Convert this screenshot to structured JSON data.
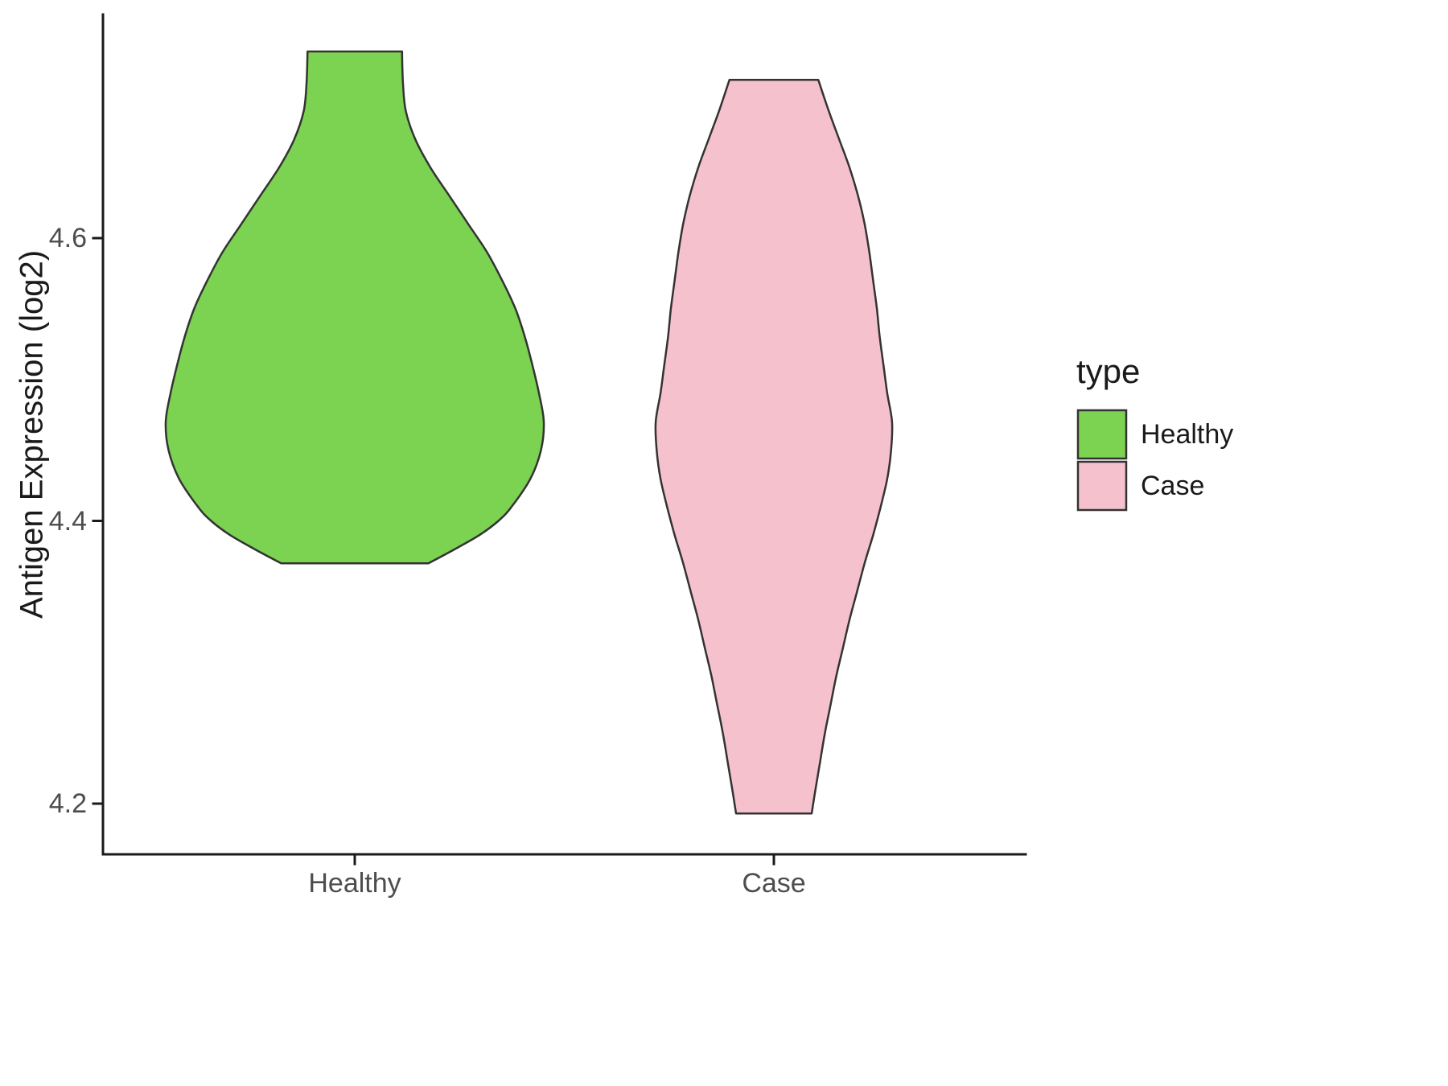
{
  "figure": {
    "background": "#FFFFFF"
  },
  "chart_data": {
    "type": "violin",
    "title": "",
    "xlabel": "",
    "ylabel": "Antigen Expression (log2)",
    "categories": [
      "Healthy",
      "Case"
    ],
    "yticks": [
      4.6,
      4.4,
      4.2
    ],
    "ytick_labels": [
      "4.6",
      "4.4",
      "4.2"
    ],
    "ylim": [
      4.16,
      4.76
    ],
    "grid": false,
    "style": {
      "axis_color": "#1a1a1a",
      "tick_label_color": "#4d4d4d",
      "outline_color": "#333333"
    },
    "legend": {
      "title": "type",
      "position": "right",
      "entries": [
        {
          "label": "Healthy",
          "color": "#7CD251",
          "border": "#333333"
        },
        {
          "label": "Case",
          "color": "#F5C1CD",
          "border": "#333333"
        }
      ]
    },
    "series": [
      {
        "name": "Healthy",
        "fill": "#7CD251",
        "stroke": "#333333",
        "y_min": 4.37,
        "y_max": 4.73,
        "profile": [
          [
            4.732,
            0.25
          ],
          [
            4.71,
            0.255
          ],
          [
            4.69,
            0.27
          ],
          [
            4.67,
            0.32
          ],
          [
            4.65,
            0.4
          ],
          [
            4.63,
            0.5
          ],
          [
            4.61,
            0.6
          ],
          [
            4.59,
            0.7
          ],
          [
            4.57,
            0.78
          ],
          [
            4.55,
            0.85
          ],
          [
            4.53,
            0.9
          ],
          [
            4.51,
            0.94
          ],
          [
            4.49,
            0.975
          ],
          [
            4.47,
            1.0
          ],
          [
            4.45,
            0.985
          ],
          [
            4.43,
            0.93
          ],
          [
            4.41,
            0.83
          ],
          [
            4.4,
            0.76
          ],
          [
            4.39,
            0.66
          ],
          [
            4.38,
            0.53
          ],
          [
            4.37,
            0.39
          ]
        ]
      },
      {
        "name": "Case",
        "fill": "#F5C1CD",
        "stroke": "#333333",
        "y_min": 4.19,
        "y_max": 4.71,
        "profile": [
          [
            4.712,
            0.235
          ],
          [
            4.69,
            0.29
          ],
          [
            4.67,
            0.345
          ],
          [
            4.65,
            0.4
          ],
          [
            4.63,
            0.445
          ],
          [
            4.61,
            0.48
          ],
          [
            4.59,
            0.505
          ],
          [
            4.57,
            0.525
          ],
          [
            4.55,
            0.545
          ],
          [
            4.53,
            0.56
          ],
          [
            4.51,
            0.58
          ],
          [
            4.49,
            0.6
          ],
          [
            4.47,
            0.625
          ],
          [
            4.45,
            0.62
          ],
          [
            4.43,
            0.6
          ],
          [
            4.41,
            0.565
          ],
          [
            4.39,
            0.525
          ],
          [
            4.37,
            0.48
          ],
          [
            4.35,
            0.44
          ],
          [
            4.33,
            0.4
          ],
          [
            4.31,
            0.365
          ],
          [
            4.29,
            0.33
          ],
          [
            4.27,
            0.3
          ],
          [
            4.25,
            0.27
          ],
          [
            4.23,
            0.245
          ],
          [
            4.21,
            0.22
          ],
          [
            4.193,
            0.2
          ]
        ]
      }
    ]
  }
}
